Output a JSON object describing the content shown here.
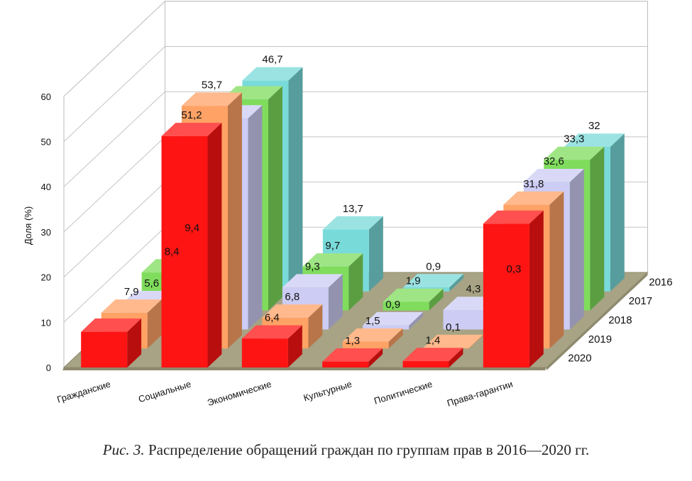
{
  "chart_data": {
    "type": "bar",
    "subtype": "3d-clustered-depth",
    "title": "",
    "ylabel": "Доля (%)",
    "xlabel": "",
    "ylim": [
      0,
      60
    ],
    "yticks": [
      0,
      10,
      20,
      30,
      40,
      50,
      60
    ],
    "grid": true,
    "categories": [
      "Гражданские",
      "Социальные",
      "Экономические",
      "Культурные",
      "Политические",
      "Права-гарантии"
    ],
    "series": [
      {
        "name": "2016",
        "color": "#79dada",
        "values": [
          9.4,
          46.7,
          13.7,
          0.9,
          0.3,
          32
        ],
        "labels": [
          "9,4",
          "46,7",
          "13,7",
          "0,9",
          "0,3",
          "32"
        ]
      },
      {
        "name": "2017",
        "color": "#7fdc5c",
        "values": [
          8.4,
          46.7,
          9.7,
          1.9,
          0.1,
          33.3
        ],
        "labels": [
          "8,4",
          "",
          "9,7",
          "1,9",
          "",
          "33,3"
        ]
      },
      {
        "name": "2018",
        "color": "#ccccf4",
        "values": [
          5.6,
          46.7,
          9.3,
          0.9,
          4.3,
          32.6
        ],
        "labels": [
          "5,6",
          "",
          "9,3",
          "0,9",
          "4,3",
          "32,6"
        ]
      },
      {
        "name": "2019",
        "color": "#ffa265",
        "values": [
          7.9,
          53.7,
          6.8,
          1.5,
          0.1,
          31.8
        ],
        "labels": [
          "7,9",
          "53,7",
          "6,8",
          "1,5",
          "0,1",
          "31,8"
        ]
      },
      {
        "name": "2020",
        "color": "#ff1414",
        "values": [
          7.9,
          51.2,
          6.4,
          1.3,
          1.4,
          31.8
        ],
        "labels": [
          "",
          "51,2",
          "6,4",
          "1,3",
          "1,4",
          ""
        ]
      }
    ]
  },
  "caption": {
    "figure_label": "Рис. 3.",
    "text": "Распределение обращений граждан по группам прав в 2016—2020 гг."
  }
}
